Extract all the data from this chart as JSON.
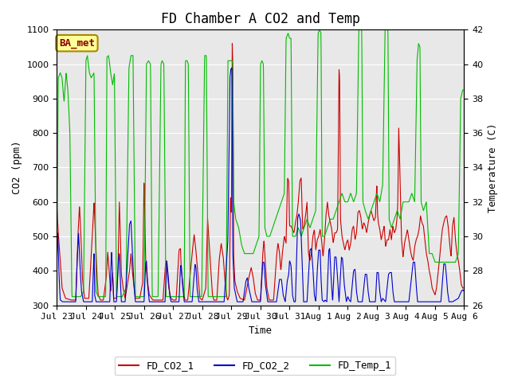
{
  "title": "FD Chamber A CO2 and Temp",
  "ylabel_left": "CO2 (ppm)",
  "ylabel_right": "Temperature (C)",
  "xlabel": "Time",
  "ylim_left": [
    300,
    1100
  ],
  "ylim_right": [
    26,
    42
  ],
  "yticks_left": [
    300,
    400,
    500,
    600,
    700,
    800,
    900,
    1000,
    1100
  ],
  "yticks_right": [
    26,
    28,
    30,
    32,
    34,
    36,
    38,
    40,
    42
  ],
  "fig_bg_color": "#ffffff",
  "plot_bg_color": "#e8e8e8",
  "grid_color": "white",
  "legend_entries": [
    "FD_CO2_1",
    "FD_CO2_2",
    "FD_Temp_1"
  ],
  "line_colors": [
    "#cc0000",
    "#0000cc",
    "#00bb00"
  ],
  "annotation_text": "BA_met",
  "annotation_color": "#8b0000",
  "annotation_bg": "#ffff99",
  "annotation_border": "#aa8800",
  "xtick_labels": [
    "Jul 23",
    "Jul 24",
    "Jul 25",
    "Jul 26",
    "Jul 27",
    "Jul 28",
    "Jul 29",
    "Jul 30",
    "Jul 31",
    "Aug 1",
    "Aug 2",
    "Aug 3",
    "Aug 4",
    "Aug 5",
    "Aug 6"
  ],
  "title_fontsize": 12,
  "axis_label_fontsize": 9,
  "tick_fontsize": 8,
  "legend_fontsize": 9,
  "font_family": "monospace"
}
